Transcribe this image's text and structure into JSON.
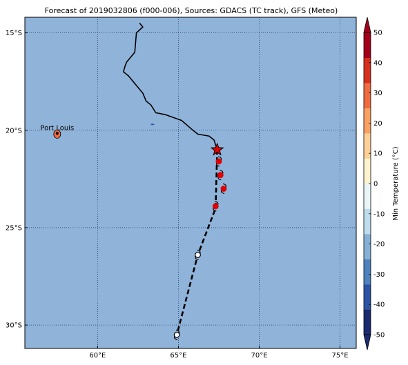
{
  "title": "Forecast of 2019032806 (f000-006), Sources: GDACS (TC track), GFS (Meteo)",
  "map": {
    "lon_range": [
      55.5,
      76
    ],
    "lat_range": [
      -31.2,
      -14.2
    ],
    "lon_ticks": [
      {
        "value": 60,
        "label": "60°E"
      },
      {
        "value": 65,
        "label": "65°E"
      },
      {
        "value": 70,
        "label": "70°E"
      },
      {
        "value": 75,
        "label": "75°E"
      }
    ],
    "lat_ticks": [
      {
        "value": -15,
        "label": "15°S"
      },
      {
        "value": -20,
        "label": "20°S"
      },
      {
        "value": -25,
        "label": "25°S"
      },
      {
        "value": -30,
        "label": "30°S"
      }
    ],
    "ocean_color": "#8fb3d9",
    "grid": "dotted"
  },
  "places": [
    {
      "name": "Port Louis",
      "lon": 57.5,
      "lat": -20.16
    }
  ],
  "colorbar": {
    "label": "Min Temperature (°C)",
    "min": -50,
    "max": 50,
    "ticks": [
      50,
      40,
      30,
      20,
      10,
      0,
      -10,
      -20,
      -30,
      -40,
      -50
    ],
    "colors": [
      "#1a2a6e",
      "#2c53a3",
      "#4f82bd",
      "#86b0d5",
      "#bddcec",
      "#eaf5f8",
      "#fdf3cf",
      "#fdd097",
      "#f9a163",
      "#ef6b41",
      "#d6301f",
      "#a3001c"
    ]
  },
  "track_past": [
    [
      62.6,
      -14.5
    ],
    [
      62.8,
      -14.7
    ],
    [
      62.4,
      -15.0
    ],
    [
      62.3,
      -16.0
    ],
    [
      61.8,
      -16.5
    ],
    [
      61.7,
      -16.7
    ],
    [
      61.6,
      -17.0
    ],
    [
      61.9,
      -17.2
    ],
    [
      62.3,
      -17.6
    ],
    [
      62.8,
      -18.1
    ],
    [
      63.0,
      -18.5
    ],
    [
      63.3,
      -18.7
    ],
    [
      63.6,
      -19.1
    ],
    [
      64.2,
      -19.2
    ],
    [
      65.2,
      -19.5
    ],
    [
      65.9,
      -20.0
    ],
    [
      66.2,
      -20.2
    ],
    [
      66.9,
      -20.3
    ],
    [
      67.2,
      -20.5
    ],
    [
      67.4,
      -21.0
    ]
  ],
  "track_forecast": [
    [
      67.4,
      -21.0
    ],
    [
      67.3,
      -24.0
    ],
    [
      66.2,
      -26.4
    ],
    [
      64.9,
      -30.5
    ]
  ],
  "current_position": {
    "lon": 67.4,
    "lat": -21.0
  },
  "forecast_points": [
    {
      "lon": 67.5,
      "lat": -21.6,
      "color": "#e00000"
    },
    {
      "lon": 67.6,
      "lat": -22.3,
      "color": "#e00000"
    },
    {
      "lon": 67.8,
      "lat": -23.0,
      "color": "#e00000"
    },
    {
      "lon": 67.3,
      "lat": -23.9,
      "color": "#e00000"
    },
    {
      "lon": 66.2,
      "lat": -26.4,
      "color": "#ffffff"
    },
    {
      "lon": 64.9,
      "lat": -30.5,
      "color": "#ffffff"
    }
  ],
  "islands": [
    {
      "lon": 57.5,
      "lat": -20.2,
      "color": "#ef6b41"
    },
    {
      "lon": 63.4,
      "lat": -19.7,
      "color": "#2c53a3"
    }
  ]
}
